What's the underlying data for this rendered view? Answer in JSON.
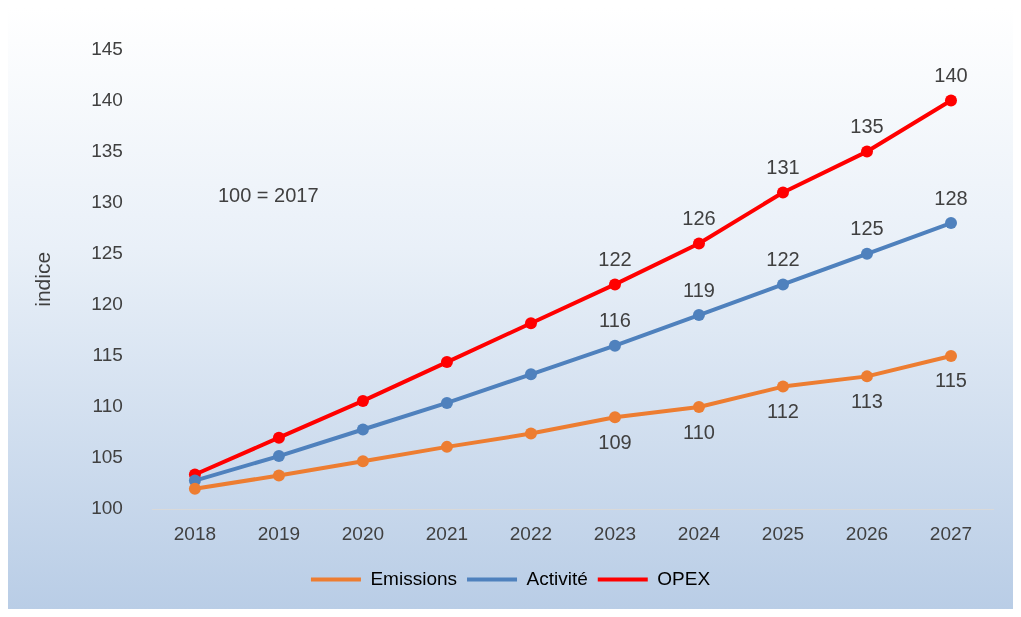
{
  "chart_data": {
    "type": "line",
    "categories": [
      "2018",
      "2019",
      "2020",
      "2021",
      "2022",
      "2023",
      "2024",
      "2025",
      "2026",
      "2027"
    ],
    "ylabel": "indice",
    "ylim": [
      100,
      145
    ],
    "yticks": [
      100,
      105,
      110,
      115,
      120,
      125,
      130,
      135,
      140,
      145
    ],
    "series": [
      {
        "name": "Emissions",
        "color": "#ed7d31",
        "values": [
          102,
          103.3,
          104.7,
          106.1,
          107.4,
          109,
          110,
          112,
          113,
          115
        ],
        "value_labels": [
          null,
          null,
          null,
          null,
          null,
          "109",
          "110",
          "112",
          "113",
          "115"
        ]
      },
      {
        "name": "Activité",
        "color": "#4f81bd",
        "values": [
          102.8,
          105.2,
          107.8,
          110.4,
          113.2,
          116,
          119,
          122,
          125,
          128
        ],
        "value_labels": [
          null,
          null,
          null,
          null,
          null,
          "116",
          "119",
          "122",
          "125",
          "128"
        ]
      },
      {
        "name": "OPEX",
        "color": "#ff0000",
        "values": [
          103.4,
          107,
          110.6,
          114.4,
          118.2,
          122,
          126,
          131,
          135,
          140
        ],
        "value_labels": [
          null,
          null,
          null,
          null,
          null,
          "122",
          "126",
          "131",
          "135",
          "140"
        ]
      }
    ],
    "annotations": [
      "100 = 2017"
    ],
    "marker": "circle",
    "line_style": "solid",
    "grid": false,
    "legend": "bottom"
  }
}
